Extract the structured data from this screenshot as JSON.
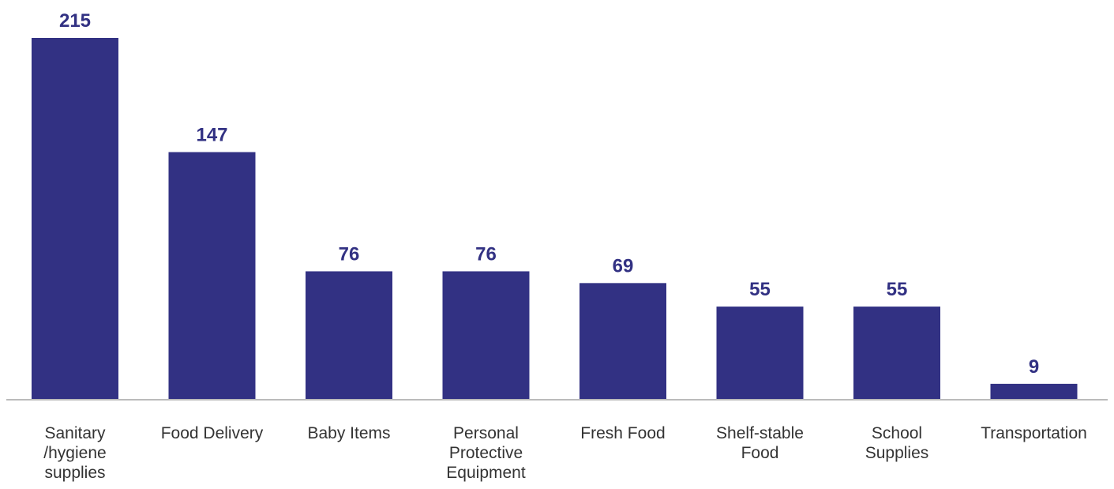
{
  "chart_data": {
    "type": "bar",
    "categories": [
      [
        "Sanitary",
        "/hygiene",
        "supplies"
      ],
      [
        "Food Delivery"
      ],
      [
        "Baby Items"
      ],
      [
        "Personal",
        "Protective",
        "Equipment"
      ],
      [
        "Fresh Food"
      ],
      [
        "Shelf-stable",
        "Food"
      ],
      [
        "School",
        "Supplies"
      ],
      [
        "Transportation"
      ]
    ],
    "values": [
      215,
      147,
      76,
      76,
      69,
      55,
      55,
      9
    ],
    "data_labels": [
      "215",
      "147",
      "76",
      "76",
      "69",
      "55",
      "55",
      "9"
    ],
    "ylim": [
      0,
      215
    ],
    "grid": false,
    "legend": "none",
    "colors": {
      "bar": "#323183",
      "value_label": "#323183",
      "axis": "#bbbbbb",
      "category_label": "#333333"
    }
  }
}
